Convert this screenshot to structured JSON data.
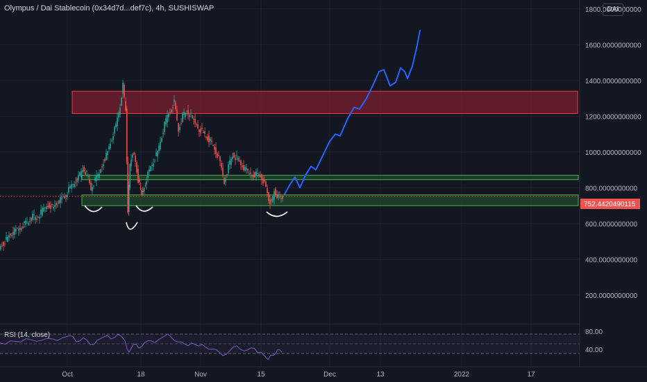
{
  "header": {
    "title": "Olympus / Dai Stablecoin (0x34d7d...def7c), 4h, SUSHISWAP",
    "currency": "DAI"
  },
  "rsi": {
    "label": "RSI (14, close)",
    "levels": [
      "80.00",
      "40.00"
    ]
  },
  "colors": {
    "background": "#131722",
    "up": "#26a69a",
    "down": "#ef5350",
    "forecast": "#2962ff",
    "resistance_zone": "#7a2030",
    "support_zone": "#1f4d2c",
    "rsi_line": "#7e57c2"
  },
  "chart_data": {
    "type": "line",
    "title": "",
    "y_axis": {
      "ticks": [
        "1800.0000000000",
        "1600.0000000000",
        "1400.0000000000",
        "1200.0000000000",
        "1000.0000000000",
        "800.0000000000",
        "600.0000000000",
        "400.0000000000",
        "200.0000000000"
      ],
      "tick_values": [
        1800,
        1600,
        1400,
        1200,
        1000,
        800,
        600,
        400,
        200
      ],
      "range": [
        40,
        1850
      ]
    },
    "x_axis": {
      "ticks": [
        "Oct",
        "18",
        "Nov",
        "15",
        "Dec",
        "13",
        "2022",
        "17"
      ]
    },
    "current_price": "752.4420490115",
    "zones": [
      {
        "type": "resistance",
        "low": 1215,
        "high": 1340
      },
      {
        "type": "support",
        "low": 845,
        "high": 870
      },
      {
        "type": "support",
        "low": 700,
        "high": 760
      }
    ],
    "price_series": [
      {
        "t": 0,
        "v": 465
      },
      {
        "t": 6,
        "v": 490
      },
      {
        "t": 12,
        "v": 520
      },
      {
        "t": 18,
        "v": 545
      },
      {
        "t": 24,
        "v": 560
      },
      {
        "t": 30,
        "v": 575
      },
      {
        "t": 36,
        "v": 600
      },
      {
        "t": 42,
        "v": 610
      },
      {
        "t": 48,
        "v": 640
      },
      {
        "t": 54,
        "v": 625
      },
      {
        "t": 60,
        "v": 660
      },
      {
        "t": 66,
        "v": 690
      },
      {
        "t": 72,
        "v": 705
      },
      {
        "t": 78,
        "v": 690
      },
      {
        "t": 84,
        "v": 720
      },
      {
        "t": 90,
        "v": 740
      },
      {
        "t": 96,
        "v": 760
      },
      {
        "t": 102,
        "v": 800
      },
      {
        "t": 108,
        "v": 830
      },
      {
        "t": 114,
        "v": 860
      },
      {
        "t": 120,
        "v": 905
      },
      {
        "t": 126,
        "v": 880
      },
      {
        "t": 132,
        "v": 790
      },
      {
        "t": 138,
        "v": 840
      },
      {
        "t": 144,
        "v": 880
      },
      {
        "t": 150,
        "v": 950
      },
      {
        "t": 156,
        "v": 1000
      },
      {
        "t": 162,
        "v": 1080
      },
      {
        "t": 168,
        "v": 1150
      },
      {
        "t": 174,
        "v": 1260
      },
      {
        "t": 178,
        "v": 1370
      },
      {
        "t": 182,
        "v": 1230
      },
      {
        "t": 185,
        "v": 680
      },
      {
        "t": 188,
        "v": 930
      },
      {
        "t": 192,
        "v": 1000
      },
      {
        "t": 196,
        "v": 940
      },
      {
        "t": 200,
        "v": 840
      },
      {
        "t": 205,
        "v": 760
      },
      {
        "t": 210,
        "v": 830
      },
      {
        "t": 216,
        "v": 900
      },
      {
        "t": 222,
        "v": 950
      },
      {
        "t": 228,
        "v": 1000
      },
      {
        "t": 234,
        "v": 1090
      },
      {
        "t": 240,
        "v": 1180
      },
      {
        "t": 246,
        "v": 1230
      },
      {
        "t": 252,
        "v": 1280
      },
      {
        "t": 258,
        "v": 1120
      },
      {
        "t": 264,
        "v": 1200
      },
      {
        "t": 270,
        "v": 1220
      },
      {
        "t": 276,
        "v": 1200
      },
      {
        "t": 282,
        "v": 1160
      },
      {
        "t": 288,
        "v": 1130
      },
      {
        "t": 294,
        "v": 1110
      },
      {
        "t": 300,
        "v": 1080
      },
      {
        "t": 306,
        "v": 1050
      },
      {
        "t": 312,
        "v": 1000
      },
      {
        "t": 318,
        "v": 940
      },
      {
        "t": 324,
        "v": 830
      },
      {
        "t": 330,
        "v": 920
      },
      {
        "t": 336,
        "v": 980
      },
      {
        "t": 342,
        "v": 965
      },
      {
        "t": 348,
        "v": 930
      },
      {
        "t": 354,
        "v": 900
      },
      {
        "t": 360,
        "v": 880
      },
      {
        "t": 366,
        "v": 875
      },
      {
        "t": 372,
        "v": 880
      },
      {
        "t": 378,
        "v": 860
      },
      {
        "t": 384,
        "v": 800
      },
      {
        "t": 388,
        "v": 730
      },
      {
        "t": 392,
        "v": 710
      },
      {
        "t": 396,
        "v": 780
      },
      {
        "t": 400,
        "v": 760
      },
      {
        "t": 404,
        "v": 745
      },
      {
        "t": 408,
        "v": 752
      }
    ],
    "forecast_path": [
      {
        "t": 410,
        "v": 765
      },
      {
        "t": 418,
        "v": 820
      },
      {
        "t": 425,
        "v": 860
      },
      {
        "t": 432,
        "v": 800
      },
      {
        "t": 440,
        "v": 870
      },
      {
        "t": 448,
        "v": 920
      },
      {
        "t": 455,
        "v": 900
      },
      {
        "t": 465,
        "v": 980
      },
      {
        "t": 475,
        "v": 1060
      },
      {
        "t": 483,
        "v": 1100
      },
      {
        "t": 490,
        "v": 1090
      },
      {
        "t": 500,
        "v": 1180
      },
      {
        "t": 510,
        "v": 1250
      },
      {
        "t": 518,
        "v": 1240
      },
      {
        "t": 528,
        "v": 1300
      },
      {
        "t": 538,
        "v": 1380
      },
      {
        "t": 546,
        "v": 1450
      },
      {
        "t": 553,
        "v": 1460
      },
      {
        "t": 562,
        "v": 1370
      },
      {
        "t": 570,
        "v": 1390
      },
      {
        "t": 577,
        "v": 1470
      },
      {
        "t": 583,
        "v": 1450
      },
      {
        "t": 587,
        "v": 1410
      },
      {
        "t": 594,
        "v": 1480
      },
      {
        "t": 600,
        "v": 1580
      },
      {
        "t": 605,
        "v": 1680
      }
    ],
    "rsi_series": [
      {
        "t": 0,
        "v": 58
      },
      {
        "t": 15,
        "v": 62
      },
      {
        "t": 30,
        "v": 60
      },
      {
        "t": 45,
        "v": 64
      },
      {
        "t": 60,
        "v": 63
      },
      {
        "t": 75,
        "v": 66
      },
      {
        "t": 90,
        "v": 68
      },
      {
        "t": 100,
        "v": 72
      },
      {
        "t": 110,
        "v": 60
      },
      {
        "t": 120,
        "v": 68
      },
      {
        "t": 130,
        "v": 55
      },
      {
        "t": 140,
        "v": 63
      },
      {
        "t": 150,
        "v": 70
      },
      {
        "t": 160,
        "v": 66
      },
      {
        "t": 170,
        "v": 75
      },
      {
        "t": 180,
        "v": 62
      },
      {
        "t": 186,
        "v": 40
      },
      {
        "t": 192,
        "v": 55
      },
      {
        "t": 200,
        "v": 48
      },
      {
        "t": 208,
        "v": 58
      },
      {
        "t": 218,
        "v": 62
      },
      {
        "t": 228,
        "v": 64
      },
      {
        "t": 238,
        "v": 72
      },
      {
        "t": 246,
        "v": 70
      },
      {
        "t": 256,
        "v": 60
      },
      {
        "t": 266,
        "v": 56
      },
      {
        "t": 276,
        "v": 58
      },
      {
        "t": 286,
        "v": 52
      },
      {
        "t": 296,
        "v": 50
      },
      {
        "t": 306,
        "v": 46
      },
      {
        "t": 316,
        "v": 40
      },
      {
        "t": 326,
        "v": 36
      },
      {
        "t": 336,
        "v": 50
      },
      {
        "t": 346,
        "v": 46
      },
      {
        "t": 356,
        "v": 44
      },
      {
        "t": 366,
        "v": 48
      },
      {
        "t": 376,
        "v": 40
      },
      {
        "t": 386,
        "v": 26
      },
      {
        "t": 394,
        "v": 34
      },
      {
        "t": 400,
        "v": 45
      },
      {
        "t": 406,
        "v": 40
      }
    ]
  }
}
